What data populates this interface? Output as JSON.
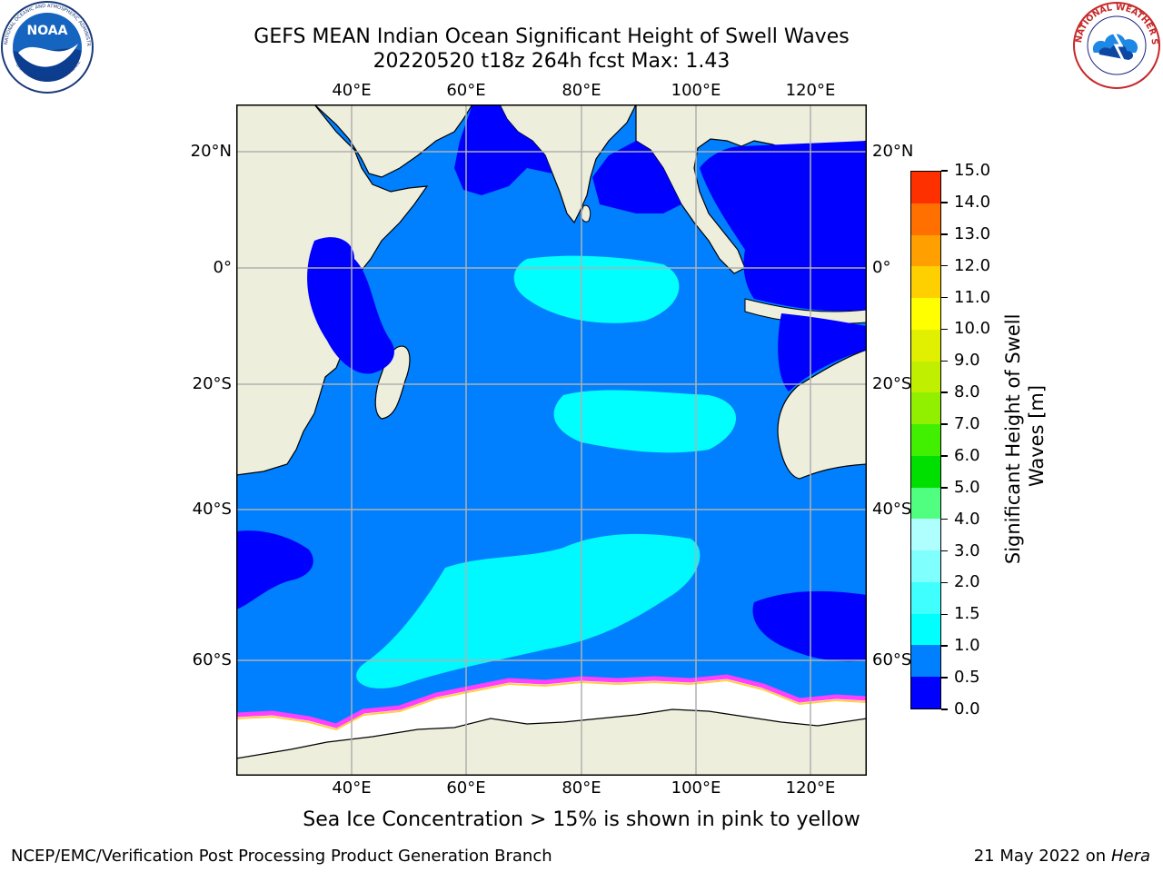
{
  "header": {
    "title_line1": "GEFS MEAN Indian Ocean Significant Height of Swell Waves",
    "title_line2": "20220520 t18z 264h fcst   Max: 1.43"
  },
  "logos": {
    "left": {
      "name": "NOAA",
      "ring_text": "NATIONAL OCEANIC AND ATMOSPHERIC ADMINISTRATION",
      "bottom_text": "U.S. DEPARTMENT OF COMMERCE"
    },
    "right": {
      "name": "NATIONAL WEATHER SERVICE"
    }
  },
  "map": {
    "lon_labels": [
      "40°E",
      "60°E",
      "80°E",
      "100°E",
      "120°E"
    ],
    "lat_labels": [
      "20°N",
      "0°",
      "20°S",
      "40°S",
      "60°S"
    ],
    "colors": {
      "ocean_deep": "#0000ff",
      "ocean_mid": "#0080ff",
      "ocean_light": "#00ffff",
      "land": "#eeeedd",
      "ice": "#ffffff",
      "ice_edge_pink": "#ff40ff",
      "ice_edge_yellow": "#ffd040"
    }
  },
  "colorbar": {
    "label": "Significant Height of Swell Waves [m]",
    "ticks": [
      "0.0",
      "0.5",
      "1.0",
      "1.5",
      "2.0",
      "3.0",
      "4.0",
      "5.0",
      "6.0",
      "7.0",
      "8.0",
      "9.0",
      "10.0",
      "11.0",
      "12.0",
      "13.0",
      "14.0",
      "15.0"
    ],
    "colors": [
      "#0000ff",
      "#0080ff",
      "#00ffff",
      "#40ffff",
      "#80ffff",
      "#b0ffff",
      "#50ff80",
      "#00e000",
      "#40f000",
      "#90f000",
      "#c0f000",
      "#e0f000",
      "#ffff00",
      "#ffd000",
      "#ffa000",
      "#ff7000",
      "#ff3000",
      "#ff0000"
    ]
  },
  "subtitle": "Sea Ice Concentration > 15% is shown in pink to yellow",
  "footer": {
    "left": "NCEP/EMC/Verification Post Processing Product Generation Branch",
    "right_date": "21 May 2022 on",
    "right_host": "Hera"
  }
}
